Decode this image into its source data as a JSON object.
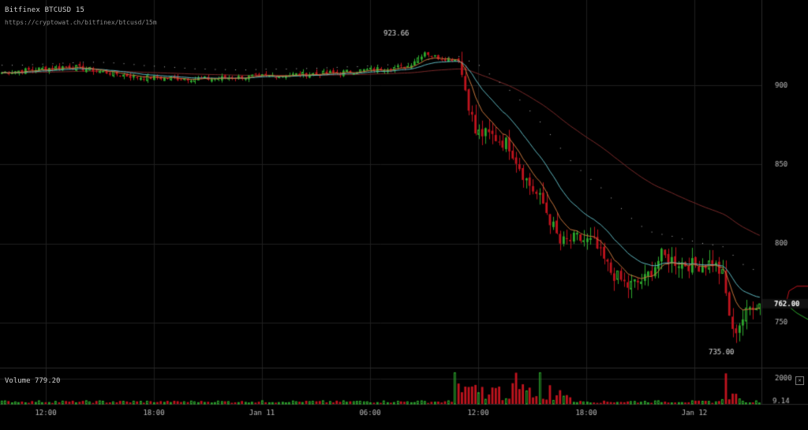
{
  "header": {
    "title": "Bitfinex BTCUSD 15",
    "url": "https://cryptowat.ch/bitfinex/btcusd/15m"
  },
  "volume_panel": {
    "label": "Volume",
    "value": "779.20"
  },
  "colors": {
    "background": "#000000",
    "up": "#2ea82e",
    "down": "#c0141e",
    "ema_fast": "#c8763c",
    "ema_mid": "#5fb8c0",
    "ema_slow": "#7a2a2a",
    "dots": "#bbbbbb",
    "grid": "#1f1f1f"
  },
  "chart_data": [
    {
      "type": "candlestick",
      "title": "Bitfinex BTCUSD 15",
      "interval": "15m",
      "x_tick_labels": [
        "12:00",
        "18:00",
        "Jan 11",
        "06:00",
        "12:00",
        "18:00",
        "Jan 12"
      ],
      "y_ticks": [
        750,
        800,
        850,
        900
      ],
      "ylim": [
        722,
        934
      ],
      "annotations": {
        "high_label": "923.66",
        "low_label": "735.00",
        "last_price_label": "762.00"
      },
      "close_trajectory_index": [
        0,
        20,
        40,
        60,
        80,
        100,
        120,
        125,
        128,
        131,
        135,
        140,
        145,
        150,
        155,
        160,
        165,
        170,
        175,
        180,
        185,
        190,
        195,
        200,
        205,
        210,
        213,
        216,
        222
      ],
      "close_trajectory": [
        908,
        912,
        905,
        904,
        906,
        908,
        912,
        921,
        918,
        917,
        916,
        870,
        868,
        862,
        840,
        825,
        800,
        803,
        800,
        782,
        773,
        777,
        792,
        788,
        786,
        788,
        780,
        743,
        762
      ],
      "grid": true
    },
    {
      "type": "bar",
      "title": "Volume",
      "current_value": "779.20",
      "y_ticks": [
        "2000",
        "9.14"
      ],
      "ylim": [
        0,
        2600
      ]
    }
  ]
}
